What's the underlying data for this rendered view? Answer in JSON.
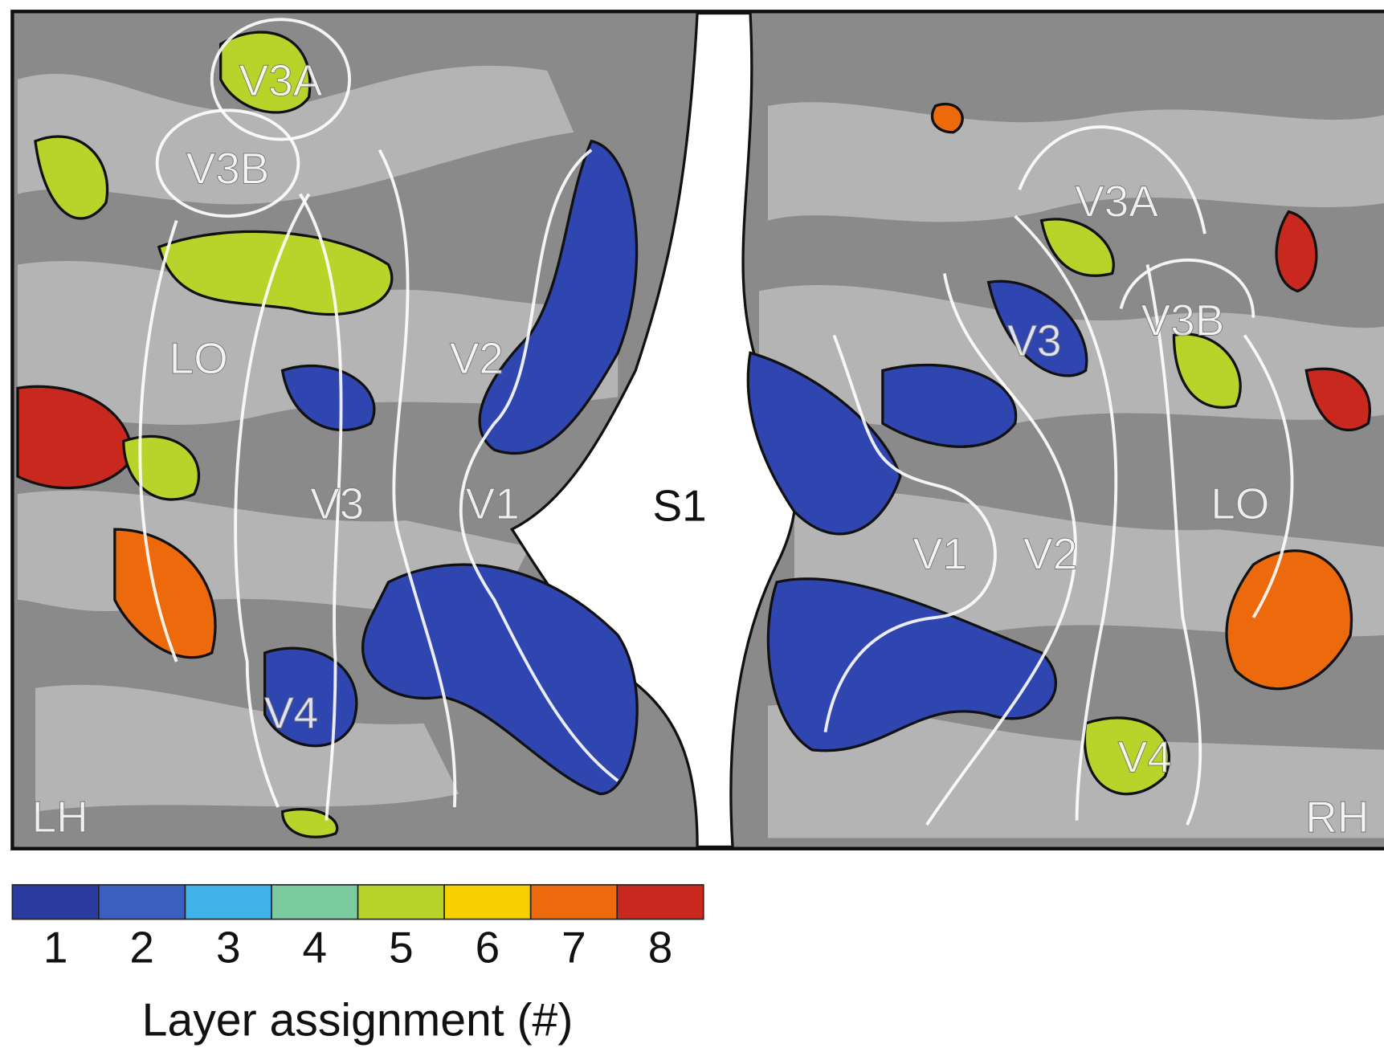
{
  "flatmap": {
    "center_label": "S1",
    "left": {
      "hemisphere": "LH",
      "areas": [
        "V3A",
        "V3B",
        "LO",
        "V2",
        "V3",
        "V1",
        "V4"
      ]
    },
    "right": {
      "hemisphere": "RH",
      "areas": [
        "V3A",
        "V3B",
        "V3",
        "LO",
        "V1",
        "V2",
        "V4"
      ]
    }
  },
  "colorbar": {
    "title": "Layer assignment (#)",
    "levels": [
      {
        "value": 1,
        "color": "#2b3a9e"
      },
      {
        "value": 2,
        "color": "#3a5fc0"
      },
      {
        "value": 3,
        "color": "#3fb2ea"
      },
      {
        "value": 4,
        "color": "#7ccba0"
      },
      {
        "value": 5,
        "color": "#b8d42b"
      },
      {
        "value": 6,
        "color": "#f6d000"
      },
      {
        "value": 7,
        "color": "#ec6a0c"
      },
      {
        "value": 8,
        "color": "#c8281e"
      }
    ]
  }
}
